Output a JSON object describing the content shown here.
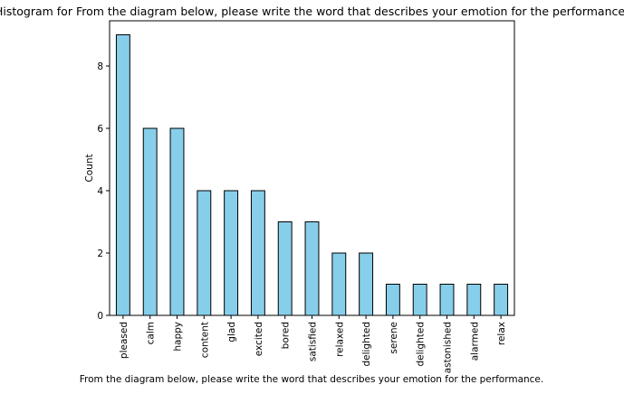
{
  "chart_data": {
    "type": "bar",
    "title": "Histogram for From the diagram below, please write the word that describes your emotion for the performance.",
    "xlabel": "From the diagram below, please write the word that describes your emotion for the performance.",
    "ylabel": "Count",
    "categories": [
      "pleased",
      "calm",
      "happy",
      "content",
      "glad",
      "excited",
      "bored",
      "satisfied",
      "relaxed",
      "delighted",
      "serene",
      "delighted",
      "astonished",
      "alarmed",
      "relax"
    ],
    "values": [
      9,
      6,
      6,
      4,
      4,
      4,
      3,
      3,
      2,
      2,
      1,
      1,
      1,
      1,
      1
    ],
    "ylim": [
      0,
      9.45
    ],
    "yticks": [
      0,
      2,
      4,
      6,
      8
    ],
    "bar_color": "#87ceeb",
    "edge_color": "#000000",
    "grid": false,
    "legend": "none"
  }
}
